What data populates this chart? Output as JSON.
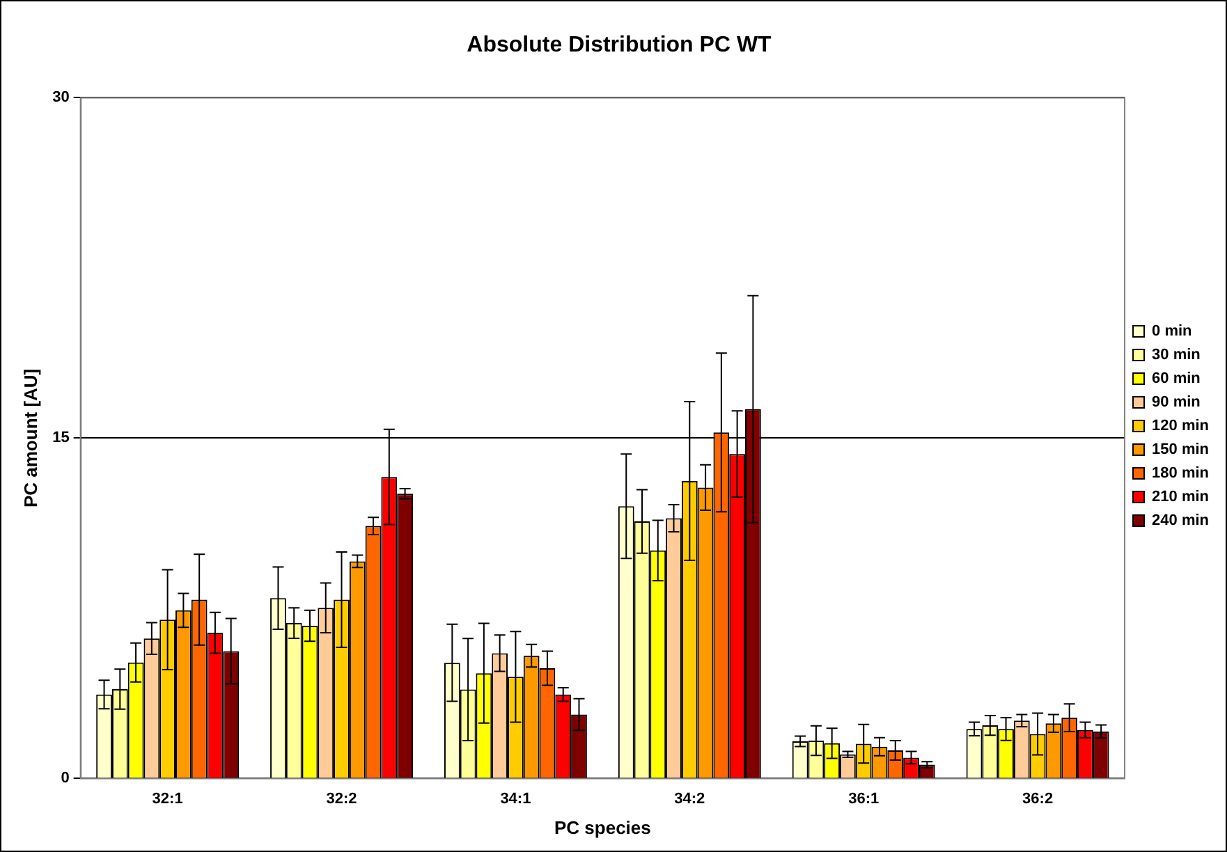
{
  "chart_data": {
    "type": "bar",
    "title": "Absolute Distribution PC WT",
    "xlabel": "PC species",
    "ylabel": "PC amount [AU]",
    "categories": [
      "32:1",
      "32:2",
      "34:1",
      "34:2",
      "36:1",
      "36:2"
    ],
    "ylim": [
      0,
      30
    ],
    "yticks": [
      0,
      15,
      30
    ],
    "grid": "y",
    "legend": "right",
    "series": [
      {
        "name": "0 min",
        "color": "#ffffcc",
        "values": [
          3.7,
          7.95,
          5.1,
          12.0,
          1.64,
          2.18
        ],
        "errors": [
          0.63,
          1.37,
          1.7,
          2.3,
          0.23,
          0.3
        ]
      },
      {
        "name": "30 min",
        "color": "#ffff99",
        "values": [
          3.94,
          6.85,
          3.92,
          11.33,
          1.67,
          2.34
        ],
        "errors": [
          0.88,
          0.67,
          2.25,
          1.4,
          0.65,
          0.43
        ]
      },
      {
        "name": "60 min",
        "color": "#ffff00",
        "values": [
          5.11,
          6.73,
          4.64,
          10.05,
          1.55,
          2.18
        ],
        "errors": [
          0.86,
          0.68,
          2.2,
          1.33,
          0.66,
          0.5
        ]
      },
      {
        "name": "90 min",
        "color": "#ffcc99",
        "values": [
          6.17,
          7.52,
          5.52,
          11.47,
          1.06,
          2.55
        ],
        "errors": [
          0.7,
          1.1,
          0.8,
          0.6,
          0.13,
          0.27
        ]
      },
      {
        "name": "120 min",
        "color": "#ffcc00",
        "values": [
          7.0,
          7.88,
          4.48,
          13.11,
          1.53,
          1.96
        ],
        "errors": [
          2.2,
          2.1,
          2.0,
          3.5,
          0.85,
          0.92
        ]
      },
      {
        "name": "150 min",
        "color": "#ff9900",
        "values": [
          7.41,
          9.57,
          5.41,
          12.82,
          1.4,
          2.43
        ],
        "errors": [
          0.75,
          0.27,
          0.5,
          1.0,
          0.4,
          0.39
        ]
      },
      {
        "name": "180 min",
        "color": "#ff6600",
        "values": [
          7.88,
          11.13,
          4.86,
          15.25,
          1.24,
          2.68
        ],
        "errors": [
          2.0,
          0.38,
          0.75,
          3.5,
          0.43,
          0.61
        ]
      },
      {
        "name": "210 min",
        "color": "#ff0000",
        "values": [
          6.42,
          13.29,
          3.7,
          14.3,
          0.92,
          2.14
        ],
        "errors": [
          0.9,
          2.1,
          0.3,
          1.9,
          0.27,
          0.34
        ]
      },
      {
        "name": "240 min",
        "color": "#800000",
        "values": [
          5.61,
          12.55,
          2.82,
          16.28,
          0.61,
          2.07
        ],
        "errors": [
          1.44,
          0.22,
          0.7,
          5.0,
          0.13,
          0.29
        ]
      }
    ]
  }
}
